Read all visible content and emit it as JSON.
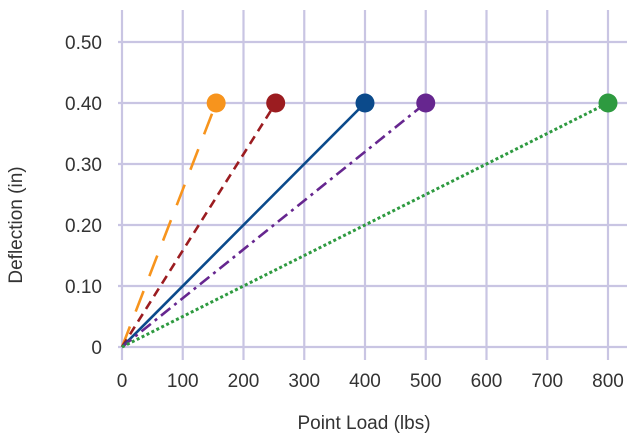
{
  "chart_data": {
    "type": "line",
    "xlabel": "Point Load (lbs)",
    "ylabel": "Deflection (in)",
    "xlim": [
      0,
      800
    ],
    "ylim": [
      0,
      0.5
    ],
    "x_ticks": [
      "0",
      "100",
      "200",
      "300",
      "400",
      "500",
      "600",
      "700",
      "800"
    ],
    "y_ticks": [
      "0",
      "0.10",
      "0.20",
      "0.30",
      "0.40",
      "0.50"
    ],
    "grid": true,
    "grid_color": "#c9c5e3",
    "series": [
      {
        "color": "#f7941d",
        "dash": "long-dash",
        "x": [
          0,
          155
        ],
        "y": [
          0,
          0.4
        ]
      },
      {
        "color": "#9b1c20",
        "dash": "dash",
        "x": [
          0,
          253
        ],
        "y": [
          0,
          0.4
        ]
      },
      {
        "color": "#0b4a8b",
        "dash": "solid",
        "x": [
          0,
          400
        ],
        "y": [
          0,
          0.4
        ]
      },
      {
        "color": "#66268f",
        "dash": "dash-dot",
        "x": [
          0,
          500
        ],
        "y": [
          0,
          0.4
        ]
      },
      {
        "color": "#2e9a40",
        "dash": "dot",
        "x": [
          0,
          800
        ],
        "y": [
          0,
          0.4
        ]
      }
    ]
  }
}
